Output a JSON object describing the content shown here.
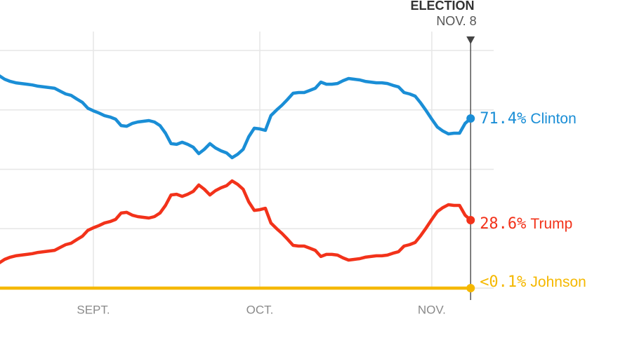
{
  "chart_data": {
    "type": "line",
    "annotation": {
      "title": "ELECTION",
      "date": "NOV. 8"
    },
    "categories": [
      null,
      null,
      null,
      null,
      null,
      null,
      null,
      null,
      null,
      null,
      null,
      null,
      null,
      null,
      null,
      null,
      null,
      "SEPT.",
      null,
      null,
      null,
      null,
      null,
      null,
      null,
      null,
      null,
      null,
      null,
      null,
      null,
      null,
      null,
      null,
      null,
      null,
      null,
      null,
      null,
      null,
      null,
      null,
      null,
      null,
      null,
      null,
      null,
      "OCT.",
      null,
      null,
      null,
      null,
      null,
      null,
      null,
      null,
      null,
      null,
      null,
      null,
      null,
      null,
      null,
      null,
      null,
      null,
      null,
      null,
      null,
      null,
      null,
      null,
      null,
      null,
      null,
      null,
      null,
      null,
      "NOV.",
      null,
      null,
      null,
      null,
      null,
      null,
      null
    ],
    "ylim": [
      0,
      100
    ],
    "yticks": [
      0,
      25,
      50,
      75,
      100
    ],
    "grid": true,
    "series": [
      {
        "name": "Clinton",
        "color": "#1a8ed6",
        "values": [
          89.4,
          87.9,
          87.0,
          86.4,
          86.1,
          85.8,
          85.5,
          85.0,
          84.7,
          84.4,
          84.1,
          82.9,
          81.7,
          81.1,
          79.6,
          78.2,
          75.7,
          74.6,
          73.7,
          72.6,
          72.0,
          71.1,
          68.4,
          68.1,
          69.3,
          69.9,
          70.2,
          70.5,
          69.9,
          68.4,
          65.2,
          60.8,
          60.5,
          61.4,
          60.5,
          59.3,
          56.6,
          58.4,
          60.8,
          59.0,
          57.8,
          56.9,
          54.9,
          56.3,
          58.4,
          63.7,
          67.3,
          67.0,
          66.4,
          72.6,
          74.9,
          77.0,
          79.4,
          82.0,
          82.3,
          82.3,
          83.2,
          84.1,
          86.7,
          85.8,
          85.8,
          86.1,
          87.3,
          88.2,
          87.9,
          87.6,
          87.0,
          86.7,
          86.4,
          86.4,
          86.1,
          85.3,
          84.7,
          82.3,
          81.7,
          80.8,
          77.9,
          74.6,
          71.1,
          67.8,
          66.1,
          64.9,
          65.2,
          65.2,
          69.3,
          71.4
        ],
        "value_labels": [
          null,
          null,
          null,
          null,
          null,
          null,
          null,
          null,
          null,
          null,
          null,
          null,
          null,
          null,
          null,
          null,
          null,
          null,
          null,
          null,
          null,
          null,
          null,
          null,
          null,
          null,
          null,
          null,
          null,
          null,
          null,
          null,
          null,
          null,
          null,
          null,
          null,
          null,
          null,
          null,
          null,
          null,
          null,
          null,
          null,
          null,
          null,
          null,
          null,
          null,
          null,
          null,
          null,
          null,
          null,
          null,
          null,
          null,
          null,
          null,
          null,
          null,
          null,
          null,
          null,
          null,
          null,
          null,
          null,
          null,
          null,
          null,
          null,
          null,
          null,
          null,
          null,
          null,
          null,
          null,
          null,
          null,
          null,
          null,
          null,
          "71.4%"
        ]
      },
      {
        "name": "Trump",
        "color": "#f2321a",
        "values": [
          10.6,
          12.1,
          13.0,
          13.6,
          13.9,
          14.2,
          14.5,
          15.0,
          15.3,
          15.6,
          15.9,
          17.1,
          18.3,
          18.9,
          20.4,
          21.8,
          24.3,
          25.4,
          26.3,
          27.4,
          28.0,
          28.9,
          31.6,
          31.9,
          30.7,
          30.1,
          29.8,
          29.5,
          30.1,
          31.6,
          34.8,
          39.2,
          39.5,
          38.6,
          39.5,
          40.7,
          43.4,
          41.6,
          39.2,
          41.0,
          42.2,
          43.1,
          45.1,
          43.7,
          41.6,
          36.3,
          32.7,
          33.0,
          33.6,
          27.4,
          25.1,
          23.0,
          20.6,
          18.0,
          17.7,
          17.7,
          16.8,
          15.9,
          13.3,
          14.2,
          14.2,
          13.9,
          12.7,
          11.8,
          12.1,
          12.4,
          13.0,
          13.3,
          13.6,
          13.6,
          13.9,
          14.7,
          15.3,
          17.7,
          18.3,
          19.2,
          22.1,
          25.4,
          28.9,
          32.2,
          33.9,
          35.1,
          34.8,
          34.8,
          30.7,
          28.6
        ],
        "value_labels": [
          null,
          null,
          null,
          null,
          null,
          null,
          null,
          null,
          null,
          null,
          null,
          null,
          null,
          null,
          null,
          null,
          null,
          null,
          null,
          null,
          null,
          null,
          null,
          null,
          null,
          null,
          null,
          null,
          null,
          null,
          null,
          null,
          null,
          null,
          null,
          null,
          null,
          null,
          null,
          null,
          null,
          null,
          null,
          null,
          null,
          null,
          null,
          null,
          null,
          null,
          null,
          null,
          null,
          null,
          null,
          null,
          null,
          null,
          null,
          null,
          null,
          null,
          null,
          null,
          null,
          null,
          null,
          null,
          null,
          null,
          null,
          null,
          null,
          null,
          null,
          null,
          null,
          null,
          null,
          null,
          null,
          null,
          null,
          null,
          null,
          "28.6%"
        ]
      },
      {
        "name": "Johnson",
        "color": "#f5b800",
        "values": [
          0,
          0,
          0,
          0,
          0,
          0,
          0,
          0,
          0,
          0,
          0,
          0,
          0,
          0,
          0,
          0,
          0,
          0,
          0,
          0,
          0,
          0,
          0,
          0,
          0,
          0,
          0,
          0,
          0,
          0,
          0,
          0,
          0,
          0,
          0,
          0,
          0,
          0,
          0,
          0,
          0,
          0,
          0,
          0,
          0,
          0,
          0,
          0,
          0,
          0,
          0,
          0,
          0,
          0,
          0,
          0,
          0,
          0,
          0,
          0,
          0,
          0,
          0,
          0,
          0,
          0,
          0,
          0,
          0,
          0,
          0,
          0,
          0,
          0,
          0,
          0,
          0,
          0,
          0,
          0,
          0,
          0,
          0,
          0,
          0,
          0
        ],
        "value_labels": [
          null,
          null,
          null,
          null,
          null,
          null,
          null,
          null,
          null,
          null,
          null,
          null,
          null,
          null,
          null,
          null,
          null,
          null,
          null,
          null,
          null,
          null,
          null,
          null,
          null,
          null,
          null,
          null,
          null,
          null,
          null,
          null,
          null,
          null,
          null,
          null,
          null,
          null,
          null,
          null,
          null,
          null,
          null,
          null,
          null,
          null,
          null,
          null,
          null,
          null,
          null,
          null,
          null,
          null,
          null,
          null,
          null,
          null,
          null,
          null,
          null,
          null,
          null,
          null,
          null,
          null,
          null,
          null,
          null,
          null,
          null,
          null,
          null,
          null,
          null,
          null,
          null,
          null,
          null,
          null,
          null,
          null,
          null,
          null,
          null,
          "<0.1%"
        ]
      }
    ]
  }
}
